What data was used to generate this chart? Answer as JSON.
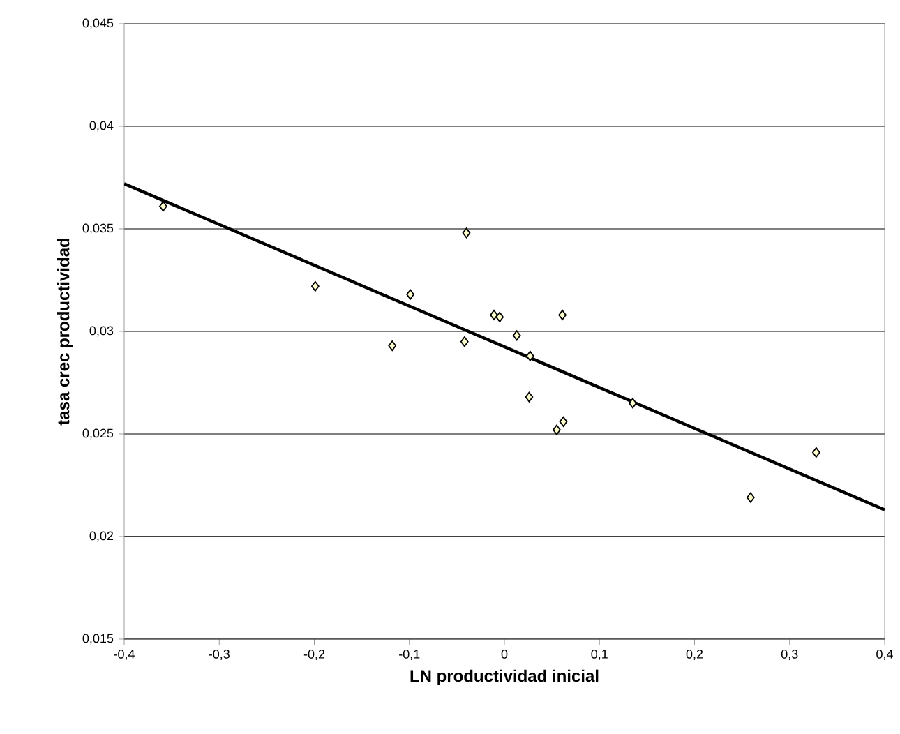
{
  "chart_data": {
    "type": "scatter",
    "xlabel": "LN productividad inicial",
    "ylabel": "tasa crec productividad",
    "marker": "diamond",
    "grid": "y",
    "xlim": [
      -0.4,
      0.4
    ],
    "ylim": [
      0.015,
      0.045
    ],
    "xticks": [
      {
        "value": -0.4,
        "label": "-0,4"
      },
      {
        "value": -0.3,
        "label": "-0,3"
      },
      {
        "value": -0.2,
        "label": "-0,2"
      },
      {
        "value": -0.1,
        "label": "-0,1"
      },
      0,
      {
        "value": 0.1,
        "label": "0,1"
      },
      {
        "value": 0.2,
        "label": "0,2"
      },
      {
        "value": 0.3,
        "label": "0,3"
      },
      {
        "value": 0.4,
        "label": "0,4"
      }
    ],
    "yticks": [
      {
        "value": 0.015,
        "label": "0,015"
      },
      {
        "value": 0.02,
        "label": "0,02"
      },
      {
        "value": 0.025,
        "label": "0,025"
      },
      {
        "value": 0.03,
        "label": "0,03"
      },
      {
        "value": 0.035,
        "label": "0,035"
      },
      {
        "value": 0.04,
        "label": "0,04"
      },
      {
        "value": 0.045,
        "label": "0,045"
      }
    ],
    "series": [
      {
        "color": "#ffffcc",
        "x": [
          -0.359,
          -0.199,
          -0.099,
          -0.118,
          -0.04,
          -0.042,
          -0.011,
          -0.005,
          0.013,
          0.027,
          0.026,
          0.061,
          0.055,
          0.062,
          0.135,
          0.259,
          0.328
        ],
        "values": [
          0.0361,
          0.0322,
          0.0318,
          0.0293,
          0.0348,
          0.0295,
          0.0308,
          0.0307,
          0.0298,
          0.0288,
          0.0268,
          0.0308,
          0.0252,
          0.0256,
          0.0265,
          0.0219,
          0.0241
        ]
      },
      {
        "type": "line",
        "color": "#000000",
        "marker": "none",
        "x": [
          -0.4,
          0.4
        ],
        "values": [
          0.0372,
          0.0213
        ]
      }
    ]
  }
}
